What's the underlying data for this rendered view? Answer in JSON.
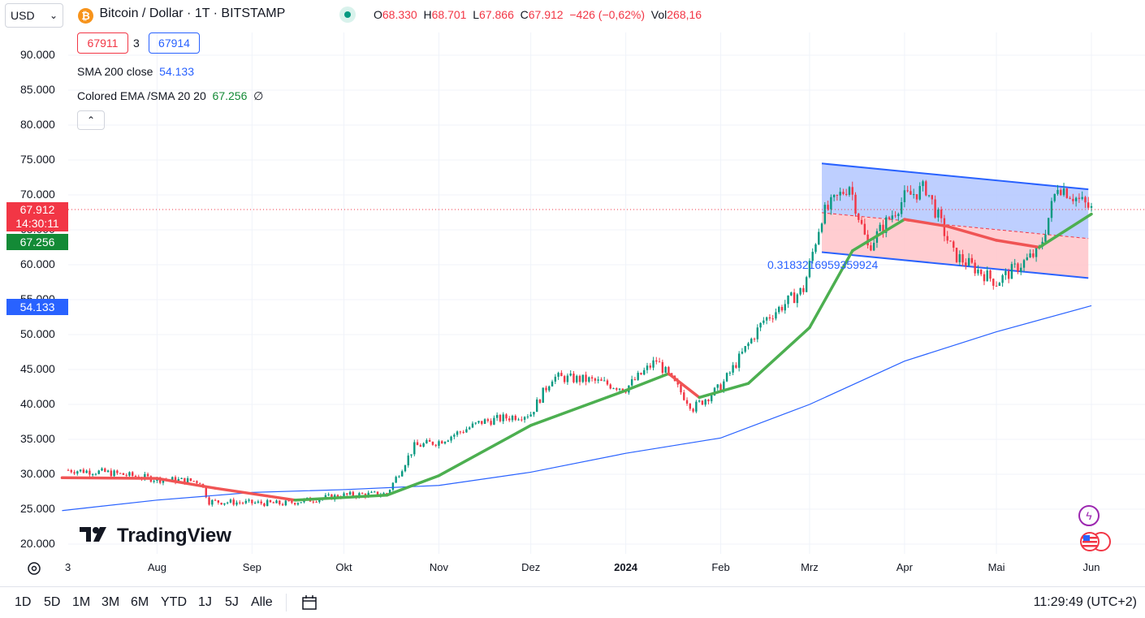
{
  "header": {
    "currency_select": "USD",
    "symbol_title": "Bitcoin / Dollar · 1T · BITSTAMP",
    "ohlc": {
      "o_label": "O",
      "o": "68.330",
      "h_label": "H",
      "h": "68.701",
      "l_label": "L",
      "l": "67.866",
      "c_label": "C",
      "c": "67.912",
      "change": "−426 (−0,62%)",
      "vol_label": "Vol",
      "vol": "268,16"
    },
    "bid": "67911",
    "spread": "3",
    "ask": "67914"
  },
  "indicators": {
    "sma_label": "SMA 200 close",
    "sma_value": "54.133",
    "ema_label": "Colored EMA /SMA 20 20",
    "ema_value": "67.256",
    "ema_suffix": "∅"
  },
  "price_axis": {
    "labels": [
      "90.000",
      "85.000",
      "80.000",
      "75.000",
      "70.000",
      "65.000",
      "60.000",
      "55.000",
      "50.000",
      "45.000",
      "40.000",
      "35.000",
      "30.000",
      "25.000",
      "20.000"
    ],
    "current_price": "67.912",
    "countdown": "14:30:11",
    "ema_tag": "67.256",
    "sma_tag": "54.133"
  },
  "time_axis": {
    "labels": [
      "Aug",
      "Sep",
      "Okt",
      "Nov",
      "Dez",
      "2024",
      "Feb",
      "Mrz",
      "Apr",
      "Mai",
      "Jun"
    ],
    "edge_label": "3"
  },
  "drawing": {
    "channel_label": "0.3183216959359924"
  },
  "watermark": "TradingView",
  "bottom_bar": {
    "ranges": [
      "1D",
      "5D",
      "1M",
      "3M",
      "6M",
      "YTD",
      "1J",
      "5J",
      "Alle"
    ],
    "clock": "11:29:49 (UTC+2)"
  },
  "colors": {
    "up": "#089981",
    "down": "#f23645",
    "sma": "#2962ff",
    "ema_up": "#4caf50",
    "ema_down": "#f05454",
    "channel_upper_fill": "#b3c7ff",
    "channel_lower_fill": "#ffc4c9"
  },
  "chart_data": {
    "type": "candlestick",
    "symbol": "BTCUSD",
    "ylim": [
      20000,
      92000
    ],
    "y_axis_side": "left",
    "price_series": {
      "x": [
        "2023-07-03",
        "2023-07-15",
        "2023-08-01",
        "2023-08-15",
        "2023-08-18",
        "2023-09-01",
        "2023-09-11",
        "2023-10-01",
        "2023-10-15",
        "2023-10-24",
        "2023-11-01",
        "2023-11-15",
        "2023-12-01",
        "2023-12-08",
        "2023-12-20",
        "2024-01-01",
        "2024-01-11",
        "2024-01-23",
        "2024-02-01",
        "2024-02-15",
        "2024-02-28",
        "2024-03-05",
        "2024-03-14",
        "2024-03-20",
        "2024-04-01",
        "2024-04-08",
        "2024-04-17",
        "2024-05-01",
        "2024-05-15",
        "2024-05-21",
        "2024-06-01"
      ],
      "close": [
        30600,
        30300,
        29300,
        29000,
        26100,
        25900,
        25800,
        27000,
        27200,
        34000,
        34700,
        37500,
        38700,
        43900,
        43500,
        42300,
        46300,
        39500,
        42500,
        52000,
        56500,
        67000,
        71500,
        62500,
        69600,
        71000,
        61500,
        57500,
        62000,
        71500,
        67912
      ]
    },
    "sma200": {
      "x": [
        "2023-07-01",
        "2023-08-01",
        "2023-09-01",
        "2023-10-01",
        "2023-11-01",
        "2023-12-01",
        "2024-01-01",
        "2024-02-01",
        "2024-03-01",
        "2024-04-01",
        "2024-05-01",
        "2024-06-01"
      ],
      "values": [
        24800,
        26300,
        27400,
        27800,
        28400,
        30300,
        33000,
        35200,
        40000,
        46200,
        50400,
        54133
      ]
    },
    "ema20": {
      "x": [
        "2023-07-01",
        "2023-08-01",
        "2023-08-20",
        "2023-09-15",
        "2023-10-15",
        "2023-11-01",
        "2023-12-01",
        "2024-01-01",
        "2024-01-15",
        "2024-01-25",
        "2024-02-10",
        "2024-03-01",
        "2024-03-15",
        "2024-04-01",
        "2024-04-15",
        "2024-05-01",
        "2024-05-15",
        "2024-06-01"
      ],
      "values": [
        29500,
        29400,
        28000,
        26300,
        27000,
        29800,
        37000,
        42000,
        44400,
        41000,
        43000,
        51000,
        62000,
        66500,
        65500,
        63500,
        62500,
        67256
      ]
    },
    "channel": {
      "upper": {
        "start": [
          "2024-03-05",
          74500
        ],
        "end": [
          "2024-05-31",
          70800
        ]
      },
      "lower": {
        "start": [
          "2024-03-05",
          61800
        ],
        "end": [
          "2024-05-31",
          58100
        ]
      },
      "label": "0.3183216959359924"
    }
  }
}
